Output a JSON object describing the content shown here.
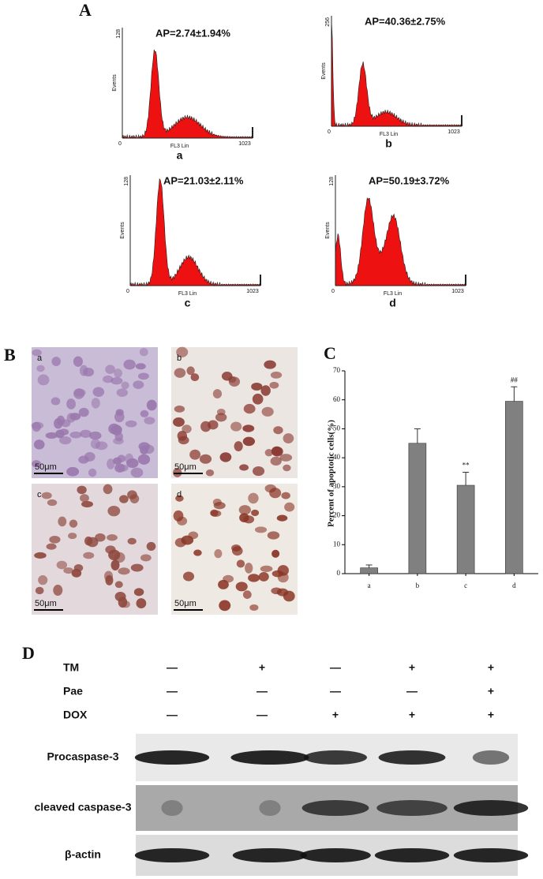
{
  "panel_labels": [
    "A",
    "B",
    "C",
    "D"
  ],
  "flow_panels": [
    {
      "ap": "AP=2.74±1.94%",
      "letter": "a",
      "y_max": "128",
      "origin": "0",
      "x_max": "1023",
      "x_label": "FL3 Lin",
      "y_label": "Events"
    },
    {
      "ap": "AP=40.36±2.75%",
      "letter": "b",
      "y_max": "256",
      "origin": "0",
      "x_max": "1023",
      "x_label": "FL3 Lin",
      "y_label": "Events"
    },
    {
      "ap": "AP=21.03±2.11%",
      "letter": "c",
      "y_max": "128",
      "origin": "0",
      "x_max": "1023",
      "x_label": "FL3 Lin",
      "y_label": "Events"
    },
    {
      "ap": "AP=50.19±3.72%",
      "letter": "d",
      "y_max": "128",
      "origin": "0",
      "x_max": "1023",
      "x_label": "FL3 Lin",
      "y_label": "Events"
    }
  ],
  "micrographs": [
    {
      "letter": "a",
      "scale": "50μm"
    },
    {
      "letter": "b",
      "scale": "50μm"
    },
    {
      "letter": "c",
      "scale": "50μm"
    },
    {
      "letter": "d",
      "scale": "50μm"
    }
  ],
  "chart_data": {
    "type": "bar",
    "y_label": "Percent of apoptotic cells(%)",
    "categories": [
      "a",
      "b",
      "c",
      "d"
    ],
    "values": [
      2,
      45,
      30.5,
      59.5
    ],
    "errors": [
      1,
      5,
      4.5,
      5
    ],
    "significance": [
      null,
      null,
      "**",
      "##"
    ],
    "color": "#808080",
    "ylim": [
      0,
      70
    ],
    "yticks": [
      0,
      10,
      20,
      30,
      40,
      50,
      60,
      70
    ]
  },
  "blot": {
    "treatments": [
      {
        "name": "TM",
        "signs": [
          "—",
          "+",
          "—",
          "+",
          "+"
        ]
      },
      {
        "name": "Pae",
        "signs": [
          "—",
          "—",
          "—",
          "—",
          "+"
        ]
      },
      {
        "name": "DOX",
        "signs": [
          "—",
          "—",
          "+",
          "+",
          "+"
        ]
      }
    ],
    "bands": [
      "Procaspase-3",
      "cleaved caspase-3",
      "β-actin"
    ]
  }
}
